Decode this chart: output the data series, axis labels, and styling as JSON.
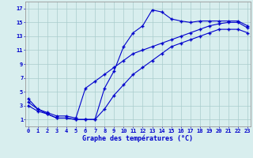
{
  "title": "Graphe des températures (°C)",
  "hours": [
    0,
    1,
    2,
    3,
    4,
    5,
    6,
    7,
    8,
    9,
    10,
    11,
    12,
    13,
    14,
    15,
    16,
    17,
    18,
    19,
    20,
    21,
    22,
    23
  ],
  "line1": [
    4,
    2.5,
    1.8,
    1.2,
    1.2,
    1.0,
    1.0,
    1.0,
    5.5,
    8.0,
    11.5,
    13.5,
    14.5,
    16.8,
    16.5,
    15.5,
    15.2,
    15.0,
    15.2,
    15.2,
    15.2,
    15.2,
    15.2,
    14.5
  ],
  "line2": [
    3.5,
    2.5,
    2.0,
    1.5,
    1.5,
    1.2,
    5.5,
    6.5,
    7.5,
    8.5,
    9.5,
    10.5,
    11.0,
    11.5,
    12.0,
    12.5,
    13.0,
    13.5,
    14.0,
    14.5,
    14.8,
    15.0,
    15.0,
    14.2
  ],
  "line3": [
    3.0,
    2.2,
    1.8,
    1.2,
    1.2,
    1.0,
    1.0,
    1.0,
    2.5,
    4.5,
    6.0,
    7.5,
    8.5,
    9.5,
    10.5,
    11.5,
    12.0,
    12.5,
    13.0,
    13.5,
    14.0,
    14.0,
    14.0,
    13.5
  ],
  "line_color": "#0000cc",
  "bg_color": "#d8eeee",
  "grid_color": "#aacccc",
  "ylim": [
    0,
    18
  ],
  "yticks": [
    1,
    3,
    5,
    7,
    9,
    11,
    13,
    15,
    17
  ],
  "xlim": [
    0,
    23
  ],
  "title_fontsize": 6.0,
  "tick_fontsize": 5.0
}
